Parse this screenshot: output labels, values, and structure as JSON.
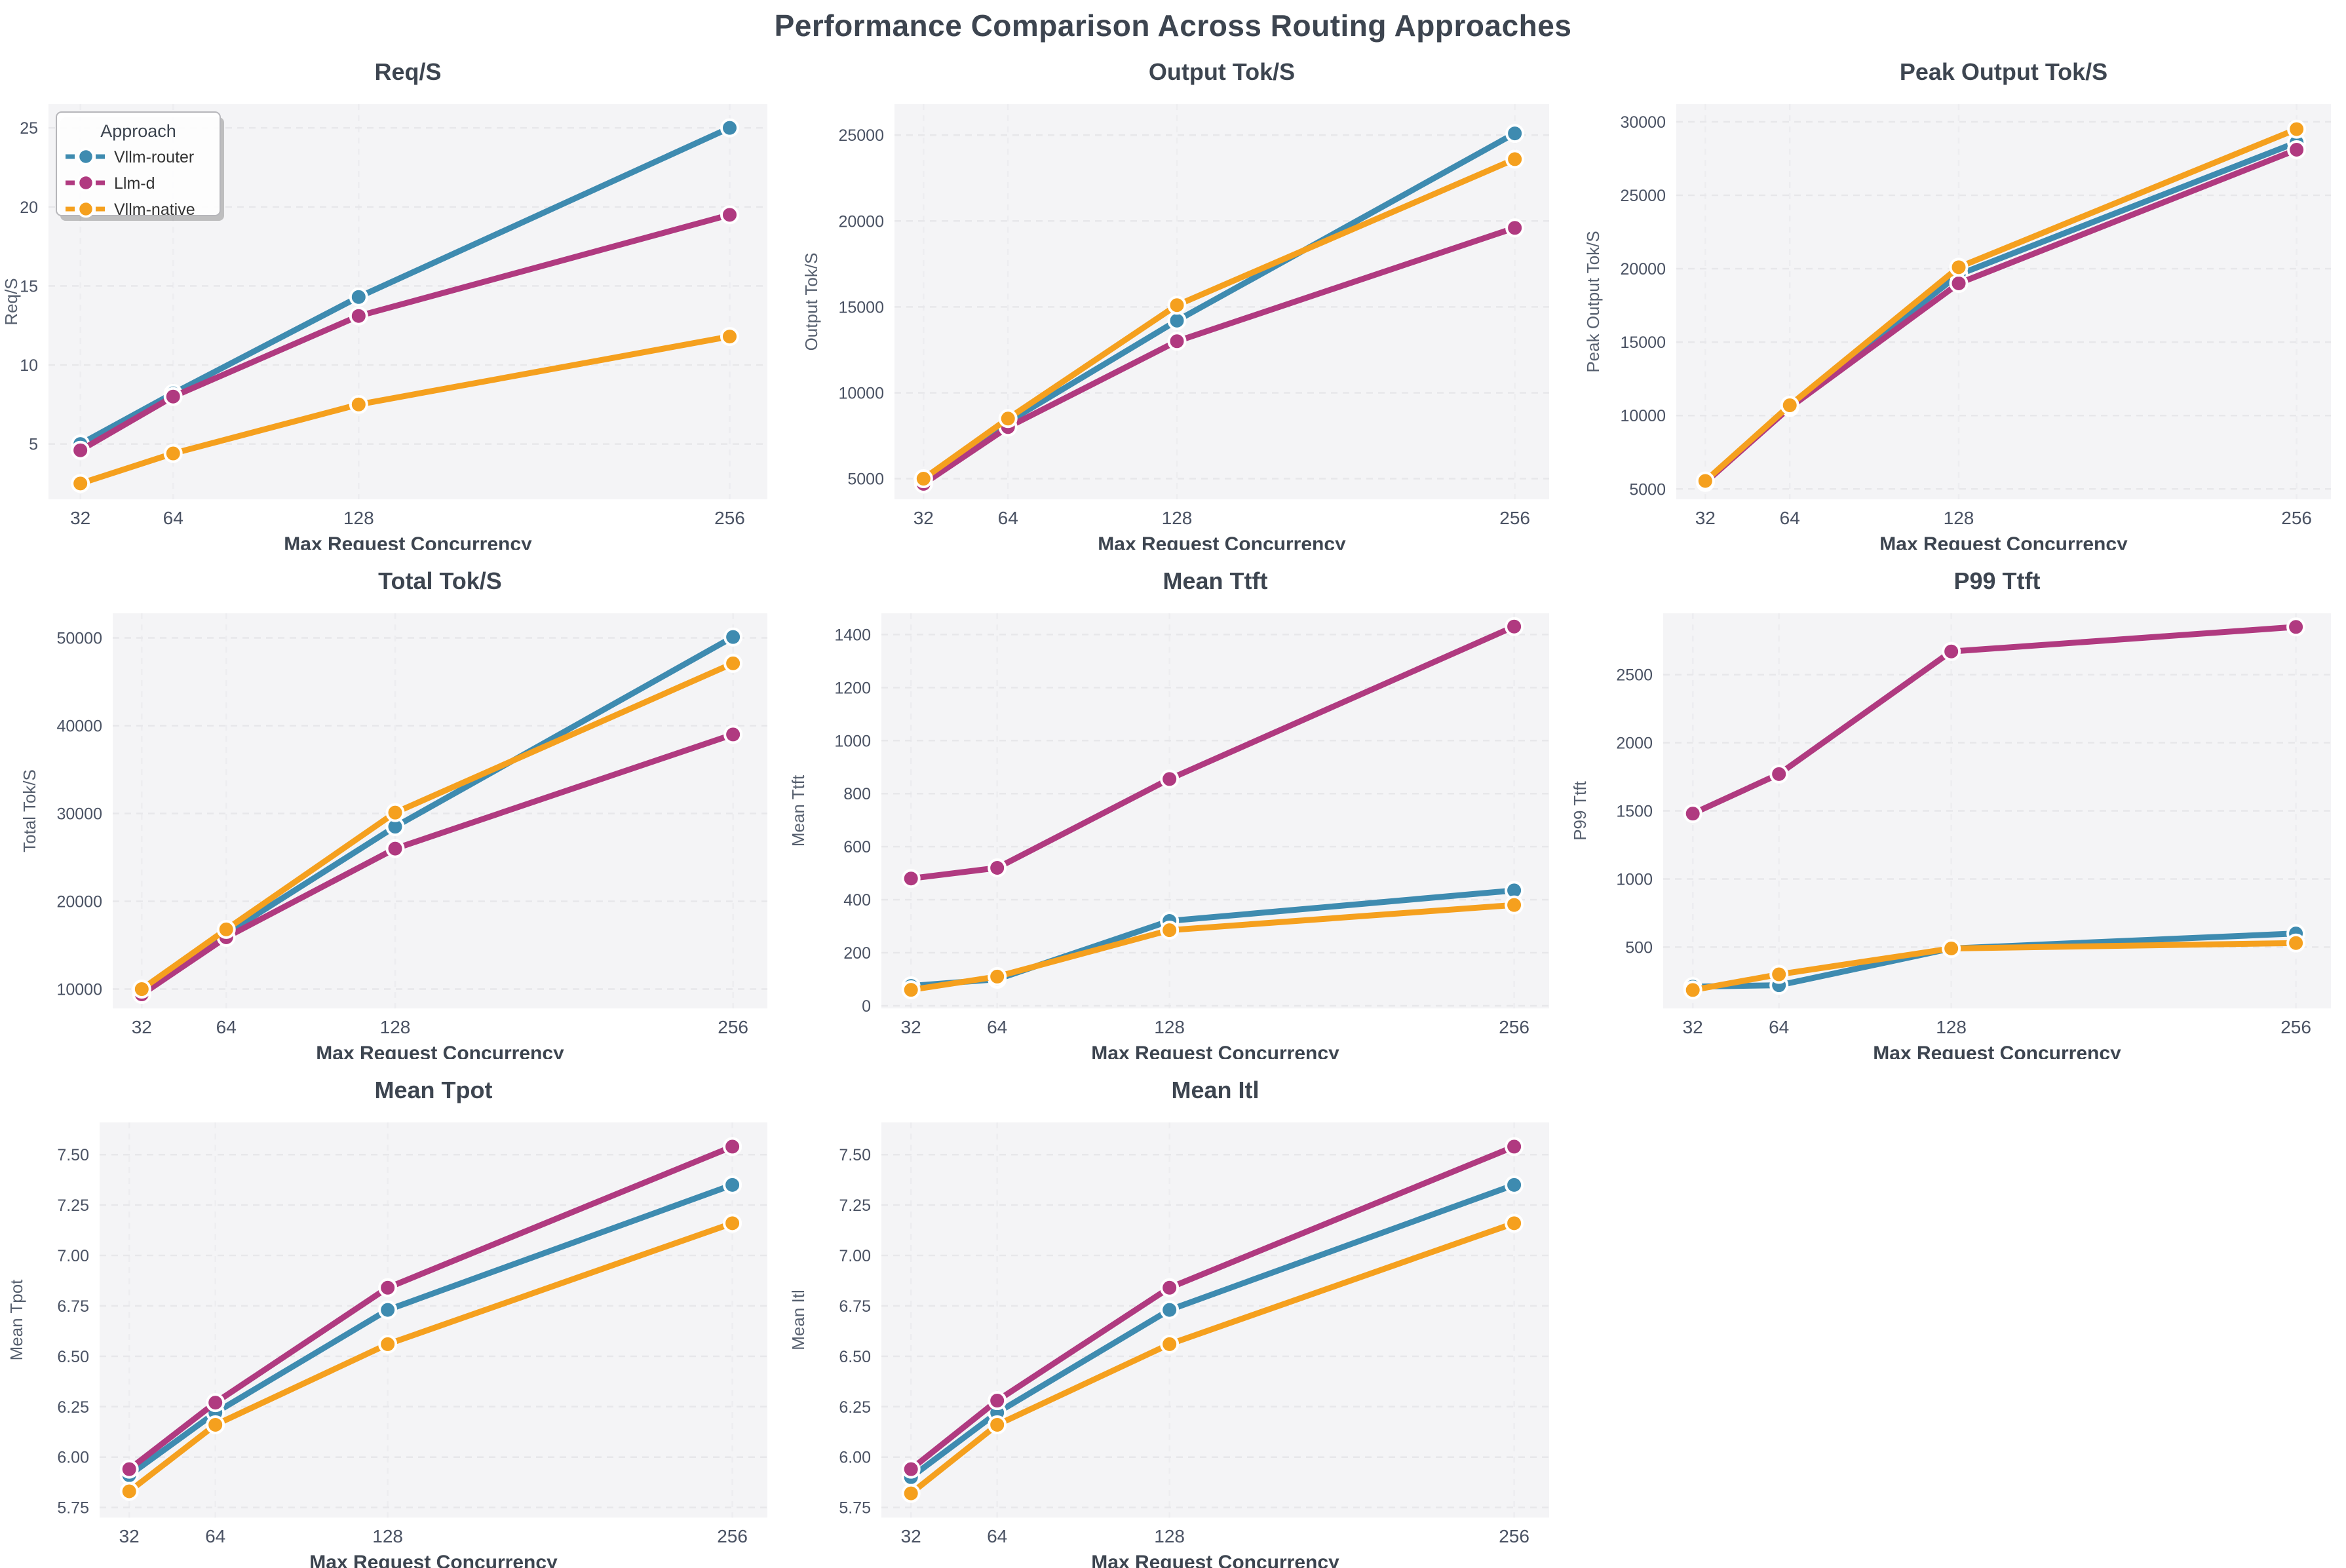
{
  "page": {
    "title": "Performance Comparison Across Routing Approaches"
  },
  "legend": {
    "title": "Approach",
    "entries": [
      {
        "label": "Vllm-router",
        "color": "#3e8bb0"
      },
      {
        "label": "Llm-d",
        "color": "#b03a80"
      },
      {
        "label": "Vllm-native",
        "color": "#f5a01e"
      }
    ],
    "position": "upper-left-first-subplot"
  },
  "x_axis": {
    "label": "Max Request Concurrency",
    "ticks": [
      32,
      64,
      128,
      256
    ],
    "xlim": [
      21,
      269
    ]
  },
  "style": {
    "plot_bg": "#f4f4f6",
    "grid_h": "#e7e7ea",
    "grid_v": "#ededf0",
    "title_color": "#3d4550",
    "tick_color": "#4a5263",
    "axis_label_color": "#565f6e",
    "legend_border": "#b6b6ba",
    "legend_text": "#333333"
  },
  "chart_data": [
    {
      "type": "line",
      "title": "Req/S",
      "ylabel": "Req/S",
      "xlabel": "Max Request Concurrency",
      "x": [
        32,
        64,
        128,
        256
      ],
      "ylim": [
        1.5,
        26.5
      ],
      "ytick_values": [
        5,
        10,
        15,
        20,
        25
      ],
      "ytick_labels": [
        "5",
        "10",
        "15",
        "20",
        "25"
      ],
      "grid": true,
      "show_legend": true,
      "series": [
        {
          "name": "Vllm-router",
          "values": [
            5.0,
            8.2,
            14.3,
            25.0
          ]
        },
        {
          "name": "Llm-d",
          "values": [
            4.6,
            8.0,
            13.1,
            19.5
          ]
        },
        {
          "name": "Vllm-native",
          "values": [
            2.5,
            4.4,
            7.5,
            11.8
          ]
        }
      ]
    },
    {
      "type": "line",
      "title": "Output Tok/S",
      "ylabel": "Output Tok/S",
      "xlabel": "Max Request Concurrency",
      "x": [
        32,
        64,
        128,
        256
      ],
      "ylim": [
        3800,
        26800
      ],
      "ytick_values": [
        5000,
        10000,
        15000,
        20000,
        25000
      ],
      "ytick_labels": [
        "5000",
        "10000",
        "15000",
        "20000",
        "25000"
      ],
      "grid": true,
      "show_legend": false,
      "series": [
        {
          "name": "Vllm-router",
          "values": [
            4900,
            8300,
            14200,
            25100
          ]
        },
        {
          "name": "Llm-d",
          "values": [
            4700,
            8000,
            13000,
            19600
          ]
        },
        {
          "name": "Vllm-native",
          "values": [
            5000,
            8500,
            15100,
            23600
          ]
        }
      ]
    },
    {
      "type": "line",
      "title": "Peak Output Tok/S",
      "ylabel": "Peak Output Tok/S",
      "xlabel": "Max Request Concurrency",
      "x": [
        32,
        64,
        128,
        256
      ],
      "ylim": [
        4300,
        31200
      ],
      "ytick_values": [
        5000,
        10000,
        15000,
        20000,
        25000,
        30000
      ],
      "ytick_labels": [
        "5000",
        "10000",
        "15000",
        "20000",
        "25000",
        "30000"
      ],
      "grid": true,
      "show_legend": false,
      "series": [
        {
          "name": "Vllm-router",
          "values": [
            5500,
            10600,
            19600,
            28600
          ]
        },
        {
          "name": "Llm-d",
          "values": [
            5450,
            10550,
            19000,
            28100
          ]
        },
        {
          "name": "Vllm-native",
          "values": [
            5550,
            10700,
            20100,
            29500
          ]
        }
      ]
    },
    {
      "type": "line",
      "title": "Total Tok/S",
      "ylabel": "Total Tok/S",
      "xlabel": "Max Request Concurrency",
      "x": [
        32,
        64,
        128,
        256
      ],
      "ylim": [
        7800,
        52800
      ],
      "ytick_values": [
        10000,
        20000,
        30000,
        40000,
        50000
      ],
      "ytick_labels": [
        "10000",
        "20000",
        "30000",
        "40000",
        "50000"
      ],
      "grid": true,
      "show_legend": false,
      "series": [
        {
          "name": "Vllm-router",
          "values": [
            9900,
            16300,
            28500,
            50100
          ]
        },
        {
          "name": "Llm-d",
          "values": [
            9400,
            15900,
            26000,
            39000
          ]
        },
        {
          "name": "Vllm-native",
          "values": [
            10000,
            16800,
            30100,
            47100
          ]
        }
      ]
    },
    {
      "type": "line",
      "title": "Mean Ttft",
      "ylabel": "Mean Ttft",
      "xlabel": "Max Request Concurrency",
      "x": [
        32,
        64,
        128,
        256
      ],
      "ylim": [
        -10,
        1480
      ],
      "ytick_values": [
        0,
        200,
        400,
        600,
        800,
        1000,
        1200,
        1400
      ],
      "ytick_labels": [
        "0",
        "200",
        "400",
        "600",
        "800",
        "1000",
        "1200",
        "1400"
      ],
      "grid": true,
      "show_legend": false,
      "series": [
        {
          "name": "Vllm-router",
          "values": [
            75,
            100,
            320,
            435
          ]
        },
        {
          "name": "Llm-d",
          "values": [
            480,
            520,
            855,
            1430
          ]
        },
        {
          "name": "Vllm-native",
          "values": [
            60,
            110,
            285,
            380
          ]
        }
      ]
    },
    {
      "type": "line",
      "title": "P99 Ttft",
      "ylabel": "P99 Ttft",
      "xlabel": "Max Request Concurrency",
      "x": [
        32,
        64,
        128,
        256
      ],
      "ylim": [
        50,
        2950
      ],
      "ytick_values": [
        500,
        1000,
        1500,
        2000,
        2500
      ],
      "ytick_labels": [
        "500",
        "1000",
        "1500",
        "2000",
        "2500"
      ],
      "grid": true,
      "show_legend": false,
      "series": [
        {
          "name": "Vllm-router",
          "values": [
            210,
            220,
            490,
            600
          ]
        },
        {
          "name": "Llm-d",
          "values": [
            1480,
            1770,
            2670,
            2850
          ]
        },
        {
          "name": "Vllm-native",
          "values": [
            185,
            300,
            490,
            530
          ]
        }
      ]
    },
    {
      "type": "line",
      "title": "Mean Tpot",
      "ylabel": "Mean Tpot",
      "xlabel": "Max Request Concurrency",
      "x": [
        32,
        64,
        128,
        256
      ],
      "ylim": [
        5.7,
        7.66
      ],
      "ytick_values": [
        5.75,
        6.0,
        6.25,
        6.5,
        6.75,
        7.0,
        7.25,
        7.5
      ],
      "ytick_labels": [
        "5.75",
        "6.00",
        "6.25",
        "6.50",
        "6.75",
        "7.00",
        "7.25",
        "7.50"
      ],
      "grid": true,
      "show_legend": false,
      "series": [
        {
          "name": "Vllm-router",
          "values": [
            5.91,
            6.22,
            6.73,
            7.35
          ]
        },
        {
          "name": "Llm-d",
          "values": [
            5.94,
            6.27,
            6.84,
            7.54
          ]
        },
        {
          "name": "Vllm-native",
          "values": [
            5.83,
            6.16,
            6.56,
            7.16
          ]
        }
      ]
    },
    {
      "type": "line",
      "title": "Mean Itl",
      "ylabel": "Mean Itl",
      "xlabel": "Max Request Concurrency",
      "x": [
        32,
        64,
        128,
        256
      ],
      "ylim": [
        5.7,
        7.66
      ],
      "ytick_values": [
        5.75,
        6.0,
        6.25,
        6.5,
        6.75,
        7.0,
        7.25,
        7.5
      ],
      "ytick_labels": [
        "5.75",
        "6.00",
        "6.25",
        "6.50",
        "6.75",
        "7.00",
        "7.25",
        "7.50"
      ],
      "grid": true,
      "show_legend": false,
      "series": [
        {
          "name": "Vllm-router",
          "values": [
            5.9,
            6.22,
            6.73,
            7.35
          ]
        },
        {
          "name": "Llm-d",
          "values": [
            5.94,
            6.28,
            6.84,
            7.54
          ]
        },
        {
          "name": "Vllm-native",
          "values": [
            5.82,
            6.16,
            6.56,
            7.16
          ]
        }
      ]
    }
  ]
}
